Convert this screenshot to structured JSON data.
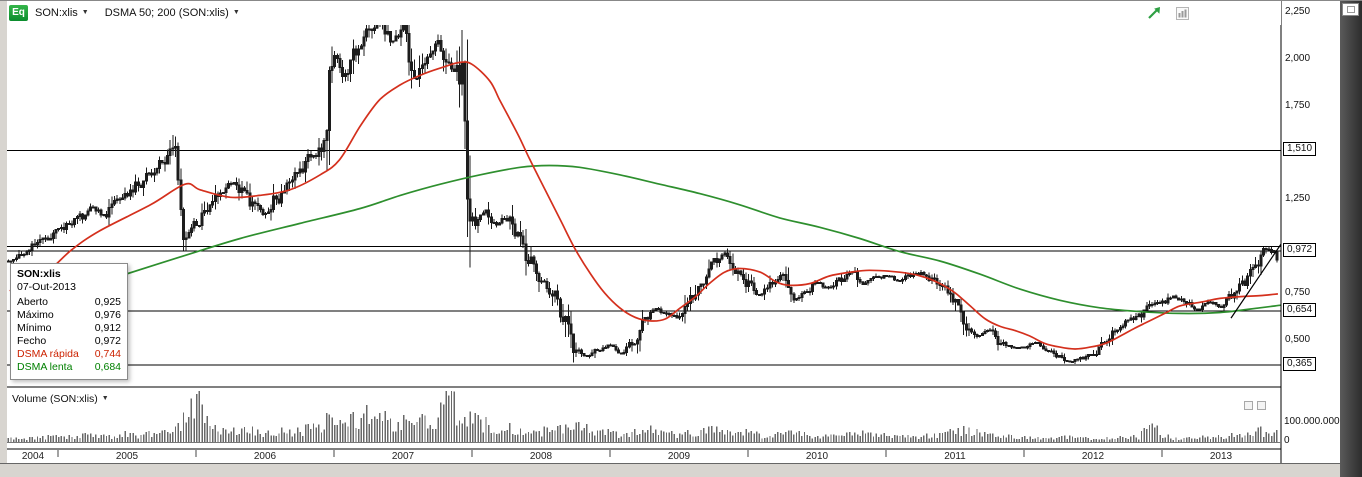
{
  "toolbar": {
    "badge": "Eq",
    "symbol": "SON:xlis",
    "indicator": "DSMA 50; 200 (SON:xlis)"
  },
  "tooltip": {
    "title": "SON:xlis",
    "date": "07-Out-2013",
    "rows": [
      {
        "label": "Aberto",
        "value": "0,925",
        "color": "#000000"
      },
      {
        "label": "Máximo",
        "value": "0,976",
        "color": "#000000"
      },
      {
        "label": "Mínimo",
        "value": "0,912",
        "color": "#000000"
      },
      {
        "label": "Fecho",
        "value": "0,972",
        "color": "#000000"
      },
      {
        "label": "DSMA rápida",
        "value": "0,744",
        "color": "#cc2200"
      },
      {
        "label": "DSMA lenta",
        "value": "0,684",
        "color": "#008000"
      }
    ]
  },
  "volume_panel": {
    "label": "Volume (SON:xlis)",
    "axis": [
      "100.000.000",
      "0"
    ]
  },
  "price_axis": {
    "plain": [
      {
        "label": "2,250",
        "value": 2.25
      },
      {
        "label": "2,000",
        "value": 2.0
      },
      {
        "label": "1,750",
        "value": 1.75
      },
      {
        "label": "1,250",
        "value": 1.25
      },
      {
        "label": "0,750",
        "value": 0.75
      },
      {
        "label": "0,500",
        "value": 0.5
      }
    ],
    "boxed": [
      {
        "label": "1,510",
        "value": 1.51
      },
      {
        "label": "0,972",
        "value": 0.972
      },
      {
        "label": "0,654",
        "value": 0.654
      },
      {
        "label": "0,365",
        "value": 0.365
      }
    ]
  },
  "x_axis": {
    "years": [
      "2004",
      "2005",
      "2006",
      "2007",
      "2008",
      "2009",
      "2010",
      "2011",
      "2012",
      "2013"
    ]
  },
  "colors": {
    "candle": "#1c1c1c",
    "sma_fast": "#d4301d",
    "sma_slow": "#2e8f2e",
    "volume_bar": "#686868",
    "level_line": "#000000",
    "badge_green": "#0b8c2d",
    "pointer_arrow_green": "#2ea043"
  },
  "chart_data": {
    "type": "candlestick",
    "symbol": "SON:xlis",
    "interval_rendered": "weekly",
    "time_range": [
      2004.64,
      2013.84
    ],
    "y_ticks": [
      2.25,
      2.0,
      1.75,
      1.51,
      1.25,
      0.972,
      0.75,
      0.654,
      0.5,
      0.365
    ],
    "levels": [
      1.51,
      0.996,
      0.972,
      0.654,
      0.365
    ],
    "last_bar": {
      "date": "07-Out-2013",
      "open": 0.925,
      "high": 0.976,
      "low": 0.912,
      "close": 0.972
    },
    "indicators": {
      "fast": "DSMA 50",
      "slow": "DSMA 200",
      "fast_value": 0.744,
      "slow_value": 0.684
    },
    "monthly_close": {
      "start_year": 2004,
      "start_month": 9,
      "values": [
        0.92,
        0.97,
        1.01,
        1.04,
        1.08,
        1.12,
        1.16,
        1.2,
        1.17,
        1.24,
        1.28,
        1.33,
        1.38,
        1.44,
        1.5,
        1.06,
        1.12,
        1.2,
        1.28,
        1.34,
        1.3,
        1.22,
        1.17,
        1.25,
        1.32,
        1.4,
        1.47,
        1.54,
        2.0,
        1.92,
        2.05,
        2.15,
        2.2,
        2.1,
        2.15,
        1.9,
        2.0,
        2.08,
        1.95,
        1.93,
        1.12,
        1.18,
        1.12,
        1.15,
        1.05,
        0.92,
        0.83,
        0.75,
        0.62,
        0.45,
        0.41,
        0.45,
        0.47,
        0.43,
        0.48,
        0.6,
        0.66,
        0.64,
        0.62,
        0.72,
        0.82,
        0.92,
        0.96,
        0.87,
        0.8,
        0.74,
        0.8,
        0.84,
        0.72,
        0.75,
        0.8,
        0.78,
        0.82,
        0.86,
        0.8,
        0.83,
        0.84,
        0.82,
        0.84,
        0.85,
        0.82,
        0.78,
        0.7,
        0.57,
        0.52,
        0.55,
        0.48,
        0.46,
        0.46,
        0.48,
        0.44,
        0.41,
        0.38,
        0.4,
        0.42,
        0.48,
        0.55,
        0.6,
        0.63,
        0.68,
        0.7,
        0.73,
        0.7,
        0.66,
        0.7,
        0.68,
        0.73,
        0.8,
        0.88,
        0.972
      ]
    },
    "volume_monthly_millions": [
      18,
      22,
      20,
      25,
      28,
      24,
      30,
      32,
      26,
      30,
      38,
      32,
      42,
      48,
      65,
      105,
      230,
      95,
      65,
      55,
      48,
      58,
      42,
      52,
      48,
      58,
      65,
      75,
      150,
      125,
      105,
      135,
      115,
      95,
      105,
      125,
      85,
      95,
      240,
      115,
      135,
      95,
      82,
      72,
      62,
      72,
      52,
      62,
      72,
      85,
      62,
      52,
      42,
      36,
      46,
      62,
      52,
      42,
      36,
      46,
      52,
      56,
      46,
      40,
      46,
      36,
      30,
      40,
      52,
      36,
      30,
      26,
      30,
      36,
      40,
      30,
      30,
      26,
      28,
      26,
      30,
      36,
      48,
      62,
      42,
      36,
      30,
      26,
      22,
      18,
      16,
      18,
      26,
      20,
      16,
      18,
      20,
      26,
      22,
      95,
      30,
      22,
      18,
      24,
      20,
      26,
      32,
      38,
      62,
      45
    ],
    "sma_fast_50": [
      [
        2004.65,
        0.76
      ],
      [
        2004.9,
        0.85
      ],
      [
        2005.1,
        0.98
      ],
      [
        2005.3,
        1.08
      ],
      [
        2005.67,
        1.22
      ],
      [
        2005.92,
        1.33
      ],
      [
        2006.03,
        1.3
      ],
      [
        2006.25,
        1.26
      ],
      [
        2006.46,
        1.27
      ],
      [
        2006.68,
        1.3
      ],
      [
        2006.9,
        1.38
      ],
      [
        2007.04,
        1.46
      ],
      [
        2007.19,
        1.64
      ],
      [
        2007.33,
        1.78
      ],
      [
        2007.48,
        1.86
      ],
      [
        2007.62,
        1.91
      ],
      [
        2007.77,
        1.95
      ],
      [
        2007.91,
        1.98
      ],
      [
        2008.0,
        1.97
      ],
      [
        2008.13,
        1.88
      ],
      [
        2008.2,
        1.78
      ],
      [
        2008.28,
        1.67
      ],
      [
        2008.35,
        1.57
      ],
      [
        2008.42,
        1.46
      ],
      [
        2008.53,
        1.3
      ],
      [
        2008.64,
        1.14
      ],
      [
        2008.75,
        0.98
      ],
      [
        2008.86,
        0.85
      ],
      [
        2008.96,
        0.75
      ],
      [
        2009.07,
        0.67
      ],
      [
        2009.18,
        0.62
      ],
      [
        2009.29,
        0.6
      ],
      [
        2009.4,
        0.61
      ],
      [
        2009.51,
        0.67
      ],
      [
        2009.62,
        0.73
      ],
      [
        2009.72,
        0.8
      ],
      [
        2009.83,
        0.86
      ],
      [
        2009.94,
        0.88
      ],
      [
        2010.09,
        0.86
      ],
      [
        2010.2,
        0.81
      ],
      [
        2010.3,
        0.79
      ],
      [
        2010.45,
        0.8
      ],
      [
        2010.59,
        0.84
      ],
      [
        2010.74,
        0.86
      ],
      [
        2010.88,
        0.87
      ],
      [
        2011.1,
        0.86
      ],
      [
        2011.25,
        0.84
      ],
      [
        2011.39,
        0.8
      ],
      [
        2011.5,
        0.75
      ],
      [
        2011.61,
        0.68
      ],
      [
        2011.72,
        0.61
      ],
      [
        2011.83,
        0.57
      ],
      [
        2011.93,
        0.55
      ],
      [
        2012.04,
        0.52
      ],
      [
        2012.15,
        0.48
      ],
      [
        2012.26,
        0.46
      ],
      [
        2012.37,
        0.45
      ],
      [
        2012.48,
        0.46
      ],
      [
        2012.59,
        0.48
      ],
      [
        2012.7,
        0.52
      ],
      [
        2012.8,
        0.56
      ],
      [
        2012.91,
        0.6
      ],
      [
        2013.02,
        0.64
      ],
      [
        2013.13,
        0.68
      ],
      [
        2013.28,
        0.7
      ],
      [
        2013.42,
        0.72
      ],
      [
        2013.57,
        0.73
      ],
      [
        2013.71,
        0.735
      ],
      [
        2013.84,
        0.744
      ]
    ],
    "sma_slow_200": [
      [
        2004.98,
        0.73
      ],
      [
        2005.45,
        0.84
      ],
      [
        2005.88,
        0.94
      ],
      [
        2006.32,
        1.04
      ],
      [
        2006.75,
        1.12
      ],
      [
        2007.19,
        1.2
      ],
      [
        2007.48,
        1.27
      ],
      [
        2007.77,
        1.33
      ],
      [
        2008.06,
        1.38
      ],
      [
        2008.35,
        1.42
      ],
      [
        2008.56,
        1.43
      ],
      [
        2008.78,
        1.42
      ],
      [
        2009.07,
        1.38
      ],
      [
        2009.36,
        1.33
      ],
      [
        2009.65,
        1.28
      ],
      [
        2009.94,
        1.22
      ],
      [
        2010.23,
        1.15
      ],
      [
        2010.52,
        1.1
      ],
      [
        2010.81,
        1.04
      ],
      [
        2011.1,
        0.97
      ],
      [
        2011.39,
        0.92
      ],
      [
        2011.68,
        0.85
      ],
      [
        2011.97,
        0.77
      ],
      [
        2012.26,
        0.71
      ],
      [
        2012.55,
        0.67
      ],
      [
        2012.84,
        0.65
      ],
      [
        2013.13,
        0.64
      ],
      [
        2013.42,
        0.645
      ],
      [
        2013.71,
        0.67
      ],
      [
        2013.86,
        0.684
      ]
    ],
    "trendline": [
      [
        2013.5,
        0.615
      ],
      [
        2013.87,
        1.01
      ]
    ],
    "volume_axis": {
      "tick_labels": [
        "100.000.000",
        "0"
      ],
      "tick_values_millions": [
        100,
        0
      ]
    }
  }
}
